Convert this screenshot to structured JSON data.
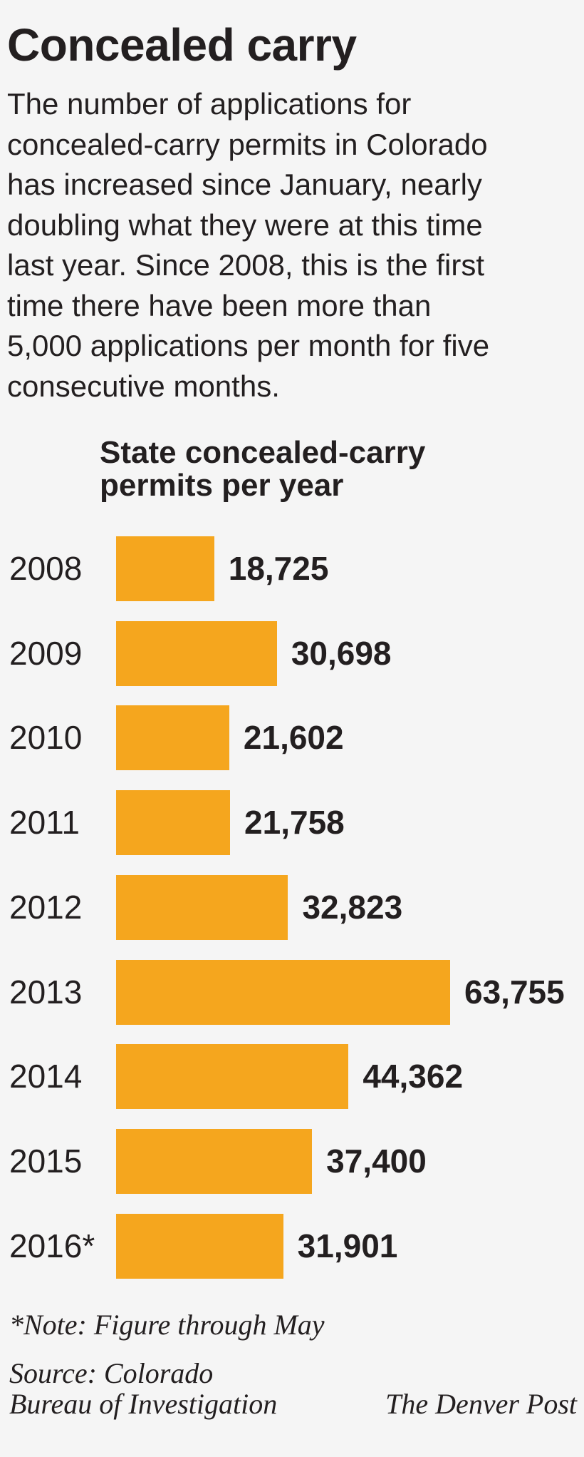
{
  "title": "Concealed carry",
  "description_lines": [
    "The number of applications for",
    "concealed-carry permits in Colorado",
    "has increased since January, nearly",
    "doubling what they were at this time",
    "last year. Since 2008, this is the first",
    "time there have been more than",
    "5,000 applications per month for five",
    "consecutive months."
  ],
  "chart_data": {
    "type": "bar",
    "orientation": "horizontal",
    "title_lines": [
      "State concealed-carry",
      "permits per year"
    ],
    "categories": [
      "2008",
      "2009",
      "2010",
      "2011",
      "2012",
      "2013",
      "2014",
      "2015",
      "2016*"
    ],
    "values": [
      18725,
      30698,
      21602,
      21758,
      32823,
      63755,
      44362,
      37400,
      31901
    ],
    "value_labels": [
      "18,725",
      "30,698",
      "21,602",
      "21,758",
      "32,823",
      "63,755",
      "44,362",
      "37,400",
      "31,901"
    ],
    "bar_color": "#f5a61e",
    "grid": false,
    "legend": "none"
  },
  "note": "*Note: Figure through May",
  "source_lines": [
    "Source: Colorado",
    "Bureau of Investigation"
  ],
  "credit": "The Denver Post"
}
